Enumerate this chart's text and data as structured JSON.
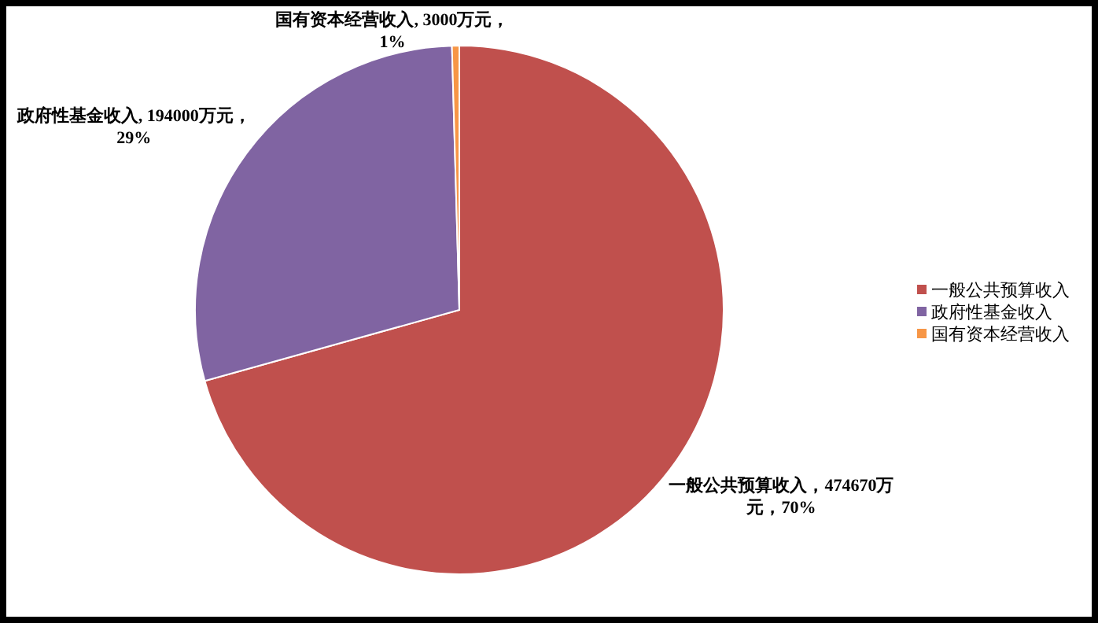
{
  "chart_data": {
    "type": "pie",
    "categories": [
      "一般公共预算收入",
      "政府性基金收入",
      "国有资本经营收入"
    ],
    "values": [
      474670,
      194000,
      3000
    ],
    "colors": [
      "#c0504d",
      "#8064a2",
      "#f79646"
    ],
    "value_labels": [
      "一般公共预算收入，474670万元，70%",
      "政府性基金收入, 194000万元， 29%",
      "国有资本经营收入, 3000万元， 1%"
    ],
    "legend": "right"
  }
}
